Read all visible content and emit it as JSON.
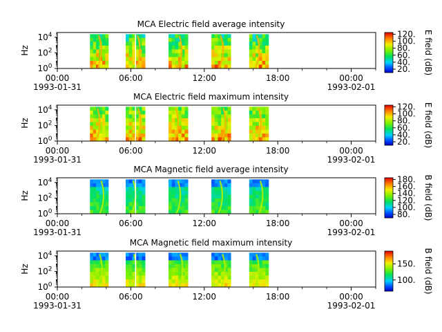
{
  "chart_data": [
    {
      "type": "heatmap",
      "title": "MCA  Electric field average intensity",
      "ylabel": "Hz",
      "y_scale": "log",
      "ylim": [
        1,
        40000
      ],
      "y_ticks": [
        {
          "value": 1,
          "base": "10",
          "exp": "0"
        },
        {
          "value": 100,
          "base": "10",
          "exp": "2"
        },
        {
          "value": 10000,
          "base": "10",
          "exp": "4"
        }
      ],
      "x_ticks": [
        {
          "value": "00:00",
          "date": "1993-01-31"
        },
        {
          "value": "06:00",
          "date": ""
        },
        {
          "value": "12:00",
          "date": ""
        },
        {
          "value": "18:00",
          "date": ""
        },
        {
          "value": "00:00",
          "date": "1993-02-01"
        }
      ],
      "xlim": [
        "1993-01-31T00:00",
        "1993-02-01T02:00"
      ],
      "colorbar": {
        "label": "E field (dB)",
        "ticks": [
          "20.",
          "40.",
          "60.",
          "80.",
          "100.",
          "120."
        ],
        "range": [
          10,
          125
        ]
      },
      "data_intervals": [
        [
          "02:40",
          "04:10"
        ],
        [
          "05:35",
          "07:10"
        ],
        [
          "09:05",
          "10:40"
        ],
        [
          "12:35",
          "14:10"
        ],
        [
          "15:40",
          "17:15"
        ]
      ],
      "variant": "e-avg"
    },
    {
      "type": "heatmap",
      "title": "MCA  Electric field maximum intensity",
      "ylabel": "Hz",
      "y_scale": "log",
      "ylim": [
        1,
        40000
      ],
      "y_ticks": [
        {
          "value": 1,
          "base": "10",
          "exp": "0"
        },
        {
          "value": 100,
          "base": "10",
          "exp": "2"
        },
        {
          "value": 10000,
          "base": "10",
          "exp": "4"
        }
      ],
      "x_ticks": [
        {
          "value": "00:00",
          "date": "1993-01-31"
        },
        {
          "value": "06:00",
          "date": ""
        },
        {
          "value": "12:00",
          "date": ""
        },
        {
          "value": "18:00",
          "date": ""
        },
        {
          "value": "00:00",
          "date": "1993-02-01"
        }
      ],
      "xlim": [
        "1993-01-31T00:00",
        "1993-02-01T02:00"
      ],
      "colorbar": {
        "label": "E field (dB)",
        "ticks": [
          "20.",
          "40.",
          "60.",
          "80.",
          "100.",
          "120."
        ],
        "range": [
          10,
          125
        ]
      },
      "data_intervals": [
        [
          "02:40",
          "04:10"
        ],
        [
          "05:35",
          "07:10"
        ],
        [
          "09:05",
          "10:40"
        ],
        [
          "12:35",
          "14:10"
        ],
        [
          "15:40",
          "17:15"
        ]
      ],
      "variant": "e-max"
    },
    {
      "type": "heatmap",
      "title": "MCA  Magnetic field average intensity",
      "ylabel": "Hz",
      "y_scale": "log",
      "ylim": [
        1,
        40000
      ],
      "y_ticks": [
        {
          "value": 1,
          "base": "10",
          "exp": "0"
        },
        {
          "value": 100,
          "base": "10",
          "exp": "2"
        },
        {
          "value": 10000,
          "base": "10",
          "exp": "4"
        }
      ],
      "x_ticks": [
        {
          "value": "00:00",
          "date": "1993-01-31"
        },
        {
          "value": "06:00",
          "date": ""
        },
        {
          "value": "12:00",
          "date": ""
        },
        {
          "value": "18:00",
          "date": ""
        },
        {
          "value": "00:00",
          "date": "1993-02-01"
        }
      ],
      "xlim": [
        "1993-01-31T00:00",
        "1993-02-01T02:00"
      ],
      "colorbar": {
        "label": "B field (dB)",
        "ticks": [
          "80.",
          "100.",
          "120.",
          "140.",
          "160.",
          "180."
        ],
        "range": [
          70,
          185
        ]
      },
      "data_intervals": [
        [
          "02:40",
          "04:10"
        ],
        [
          "05:35",
          "07:10"
        ],
        [
          "09:05",
          "10:40"
        ],
        [
          "12:35",
          "14:10"
        ],
        [
          "15:40",
          "17:15"
        ]
      ],
      "variant": "b-avg"
    },
    {
      "type": "heatmap",
      "title": "MCA  Magnetic field maximum intensity",
      "ylabel": "Hz",
      "y_scale": "log",
      "ylim": [
        1,
        40000
      ],
      "y_ticks": [
        {
          "value": 1,
          "base": "10",
          "exp": "0"
        },
        {
          "value": 100,
          "base": "10",
          "exp": "2"
        },
        {
          "value": 10000,
          "base": "10",
          "exp": "4"
        }
      ],
      "x_ticks": [
        {
          "value": "00:00",
          "date": "1993-01-31"
        },
        {
          "value": "06:00",
          "date": ""
        },
        {
          "value": "12:00",
          "date": ""
        },
        {
          "value": "18:00",
          "date": ""
        },
        {
          "value": "00:00",
          "date": "1993-02-01"
        }
      ],
      "xlim": [
        "1993-01-31T00:00",
        "1993-02-01T02:00"
      ],
      "colorbar": {
        "label": "B field (dB)",
        "ticks": [
          "100.",
          "150."
        ],
        "range": [
          65,
          190
        ]
      },
      "data_intervals": [
        [
          "02:40",
          "04:10"
        ],
        [
          "05:35",
          "07:10"
        ],
        [
          "09:05",
          "10:40"
        ],
        [
          "12:35",
          "14:10"
        ],
        [
          "15:40",
          "17:15"
        ]
      ],
      "variant": "b-max"
    }
  ]
}
